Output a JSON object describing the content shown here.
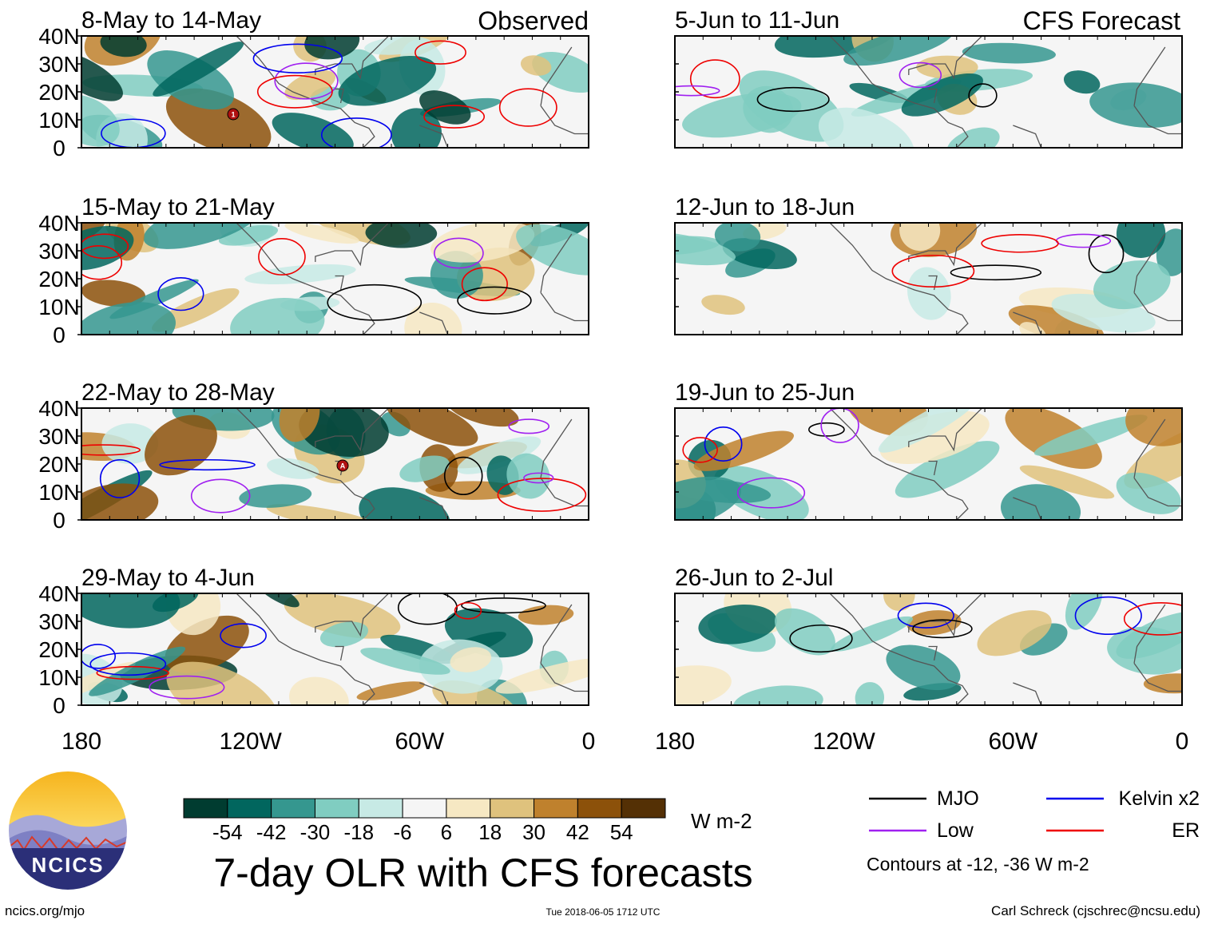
{
  "figure": {
    "title": "7-day OLR with CFS forecasts",
    "left_column_label": "Observed",
    "right_column_label": "CFS Forecast",
    "footer_left": "ncics.org/mjo",
    "footer_center": "Tue 2018-06-05 1712 UTC",
    "footer_right": "Carl Schreck (cjschrec@ncsu.edu)",
    "logo_text": "NCICS"
  },
  "chart_data": {
    "type": "heatmap",
    "variable": "OLR anomaly",
    "units": "W m-2",
    "y_ticks": [
      "40N",
      "30N",
      "20N",
      "10N",
      "0"
    ],
    "x_ticks": [
      "180",
      "120W",
      "60W",
      "0"
    ],
    "colorbar": {
      "levels": [
        "-54",
        "-42",
        "-30",
        "-18",
        "-6",
        "6",
        "18",
        "30",
        "42",
        "54"
      ],
      "colors": [
        "#003c30",
        "#01665e",
        "#35978f",
        "#80cdc1",
        "#c7eae5",
        "#f5f5f5",
        "#f6e8c3",
        "#dfc27d",
        "#bf812d",
        "#8c510a",
        "#543005"
      ],
      "units_label": "W m-2"
    },
    "legend": {
      "items": [
        {
          "label": "MJO",
          "color": "#000000"
        },
        {
          "label": "Kelvin x2",
          "color": "#0000ee"
        },
        {
          "label": "Low",
          "color": "#a020f0"
        },
        {
          "label": "ER",
          "color": "#ee0000"
        }
      ],
      "note": "Contours at -12, -36 W m-2"
    },
    "panels": [
      {
        "period": "8-May to 14-May",
        "kind": "observed"
      },
      {
        "period": "5-Jun to 11-Jun",
        "kind": "forecast"
      },
      {
        "period": "15-May to 21-May",
        "kind": "observed"
      },
      {
        "period": "12-Jun to 18-Jun",
        "kind": "forecast"
      },
      {
        "period": "22-May to 28-May",
        "kind": "observed"
      },
      {
        "period": "19-Jun to 25-Jun",
        "kind": "forecast"
      },
      {
        "period": "29-May to 4-Jun",
        "kind": "observed"
      },
      {
        "period": "26-Jun to 2-Jul",
        "kind": "forecast"
      }
    ],
    "storm_markers": [
      {
        "panel": 0,
        "label": "1"
      },
      {
        "panel": 4,
        "label": "A"
      }
    ]
  }
}
